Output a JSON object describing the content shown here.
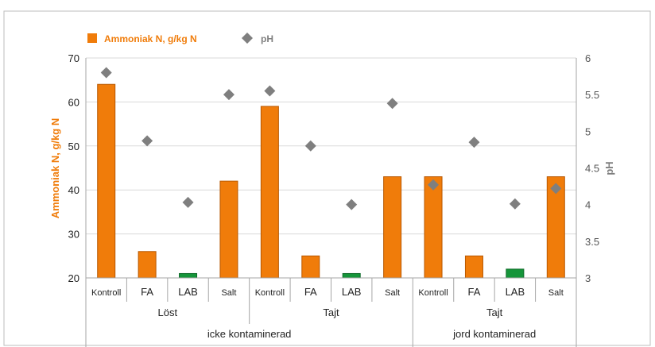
{
  "colors": {
    "bar": "#f07c0a",
    "bar_stroke": "#b85800",
    "bar_lab": "#15953a",
    "marker": "#7f7f7f",
    "axis_left_title": "#f07c0a",
    "axis_right_title": "#7f7f7f",
    "lab_label": "#15953a"
  },
  "chart_data": {
    "type": "bar",
    "legend": {
      "position": "top-left",
      "items": [
        {
          "label": "Ammoniak N, g/kg N",
          "marker": "square",
          "color": "#f07c0a"
        },
        {
          "label": "pH",
          "marker": "diamond",
          "color": "#7f7f7f"
        }
      ]
    },
    "ylabel": "Ammoniak N, g/kg N",
    "y2label": "pH",
    "ylim": [
      20,
      70
    ],
    "y2lim": [
      3,
      6
    ],
    "yticks": [
      "20",
      "30",
      "40",
      "50",
      "60",
      "70"
    ],
    "y2ticks": [
      "3",
      "3.5",
      "4",
      "4.5",
      "5",
      "5.5",
      "6"
    ],
    "grid": true,
    "categories": [
      "Kontroll",
      "FA",
      "LAB",
      "Salt",
      "Kontroll",
      "FA",
      "LAB",
      "Salt",
      "Kontroll",
      "FA",
      "LAB",
      "Salt"
    ],
    "category_groups": [
      {
        "label": "Löst",
        "start": 0,
        "end": 3
      },
      {
        "label": "Tajt",
        "start": 4,
        "end": 7
      },
      {
        "label": "Tajt",
        "start": 8,
        "end": 11
      }
    ],
    "super_groups": [
      {
        "label": "icke kontaminerad",
        "start": 0,
        "end": 7
      },
      {
        "label": "jord kontaminerad",
        "start": 8,
        "end": 11
      }
    ],
    "series": [
      {
        "name": "Ammoniak N, g/kg N",
        "type": "bar",
        "axis": "left",
        "values": [
          64,
          26,
          21,
          42,
          59,
          25,
          21,
          43,
          43,
          25,
          22,
          43
        ]
      },
      {
        "name": "pH",
        "type": "scatter",
        "axis": "right",
        "values": [
          5.8,
          4.87,
          4.03,
          5.5,
          5.55,
          4.8,
          4.0,
          5.38,
          4.27,
          4.85,
          4.01,
          4.22
        ]
      }
    ]
  }
}
